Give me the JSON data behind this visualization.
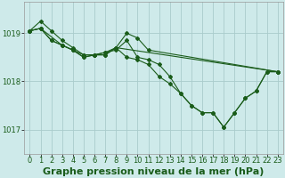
{
  "title": "Graphe pression niveau de la mer (hPa)",
  "bg_color": "#ceeaea",
  "grid_color": "#aacccc",
  "line_color": "#1a5c1a",
  "marker_color": "#1a5c1a",
  "xlim": [
    -0.5,
    23.5
  ],
  "ylim": [
    1016.5,
    1019.65
  ],
  "yticks": [
    1017.0,
    1018.0,
    1019.0
  ],
  "xticks": [
    0,
    1,
    2,
    3,
    4,
    5,
    6,
    7,
    8,
    9,
    10,
    11,
    12,
    13,
    14,
    15,
    16,
    17,
    18,
    19,
    20,
    21,
    22,
    23
  ],
  "series": [
    {
      "x": [
        0,
        1,
        2,
        3,
        4,
        5,
        6,
        7,
        8,
        9,
        10,
        11,
        12,
        13,
        14,
        15,
        16,
        17,
        18,
        19,
        20,
        21,
        22,
        23
      ],
      "y": [
        1019.05,
        1019.25,
        1019.05,
        1018.85,
        1018.7,
        1018.55,
        1018.55,
        1018.6,
        1018.7,
        1018.5,
        1018.45,
        1018.35,
        1018.1,
        1017.95,
        1017.75,
        1017.5,
        1017.35,
        1017.35,
        1017.05,
        1017.35,
        1017.65,
        1017.8,
        1018.2,
        1018.2
      ]
    },
    {
      "x": [
        0,
        1,
        2,
        3,
        4,
        5,
        6,
        7,
        8,
        9,
        10,
        11,
        12,
        13,
        14,
        15,
        16,
        17,
        18,
        19,
        20,
        21,
        22,
        23
      ],
      "y": [
        1019.05,
        1019.1,
        1018.85,
        1018.75,
        1018.65,
        1018.55,
        1018.55,
        1018.6,
        1018.65,
        1018.85,
        1018.5,
        1018.45,
        1018.35,
        1018.1,
        1017.75,
        1017.5,
        1017.35,
        1017.35,
        1017.05,
        1017.35,
        1017.65,
        1017.8,
        1018.2,
        1018.2
      ]
    },
    {
      "x": [
        0,
        1,
        2,
        3,
        4,
        5,
        6,
        7,
        8,
        9,
        10,
        11,
        23
      ],
      "y": [
        1019.05,
        1019.1,
        1018.85,
        1018.75,
        1018.65,
        1018.5,
        1018.55,
        1018.55,
        1018.7,
        1019.0,
        1018.9,
        1018.65,
        1018.2
      ]
    },
    {
      "x": [
        0,
        1,
        3,
        4,
        5,
        6,
        7,
        8,
        23
      ],
      "y": [
        1019.05,
        1019.1,
        1018.75,
        1018.65,
        1018.5,
        1018.55,
        1018.55,
        1018.7,
        1018.2
      ]
    }
  ],
  "title_fontsize": 8,
  "tick_fontsize": 6,
  "figsize": [
    3.2,
    2.0
  ],
  "dpi": 100
}
